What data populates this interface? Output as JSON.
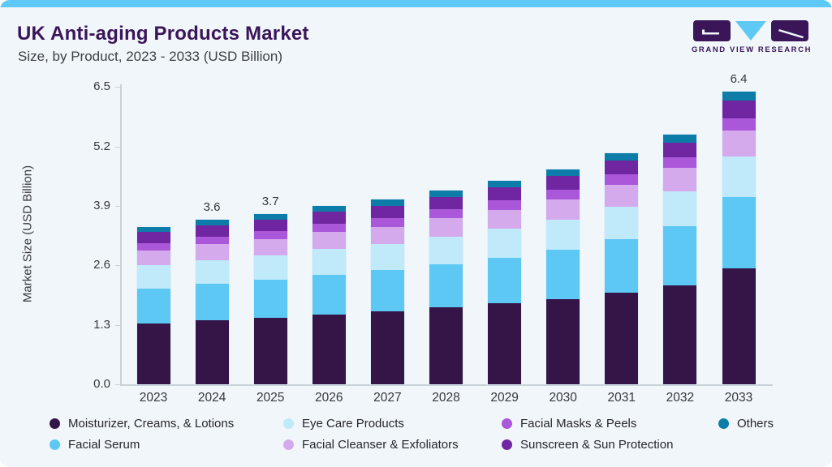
{
  "header": {
    "title": "UK Anti-aging Products Market",
    "subtitle": "Size, by Product, 2023 - 2033 (USD Billion)"
  },
  "logo": {
    "text": "GRAND VIEW RESEARCH"
  },
  "colors": {
    "top_strip": "#5ec9f5",
    "title_text": "#3a1659",
    "background": "#f1f6fa",
    "axis": "#c9d2d9",
    "logo_dark": "#3a1659",
    "logo_blue": "#5ec9f5"
  },
  "chart_data": {
    "type": "bar",
    "stacked": true,
    "title": "UK Anti-aging Products Market",
    "subtitle": "Size, by Product, 2023 - 2033 (USD Billion)",
    "xlabel": "",
    "ylabel": "Market Size (USD Billion)",
    "ylim": [
      0,
      6.5
    ],
    "y_ticks": [
      "0.0",
      "1.3",
      "2.6",
      "3.9",
      "5.2",
      "6.5"
    ],
    "grid": false,
    "legend_position": "bottom",
    "categories": [
      "2023",
      "2024",
      "2025",
      "2026",
      "2027",
      "2028",
      "2029",
      "2030",
      "2031",
      "2032",
      "2033"
    ],
    "series": [
      {
        "name": "Moisturizer, Creams, & Lotions",
        "color": "#351548",
        "values": [
          1.33,
          1.4,
          1.45,
          1.52,
          1.6,
          1.68,
          1.77,
          1.86,
          2.0,
          2.16,
          2.53
        ]
      },
      {
        "name": "Facial Serum",
        "color": "#5ec8f5",
        "values": [
          0.77,
          0.8,
          0.83,
          0.88,
          0.9,
          0.95,
          1.0,
          1.08,
          1.18,
          1.3,
          1.57
        ]
      },
      {
        "name": "Eye Care Products",
        "color": "#c0e9fa",
        "values": [
          0.5,
          0.52,
          0.54,
          0.56,
          0.57,
          0.6,
          0.63,
          0.66,
          0.71,
          0.77,
          0.88
        ]
      },
      {
        "name": "Facial Cleanser & Exfoliators",
        "color": "#d5aaec",
        "values": [
          0.32,
          0.34,
          0.35,
          0.37,
          0.38,
          0.4,
          0.42,
          0.44,
          0.47,
          0.5,
          0.58
        ]
      },
      {
        "name": "Facial Masks & Peels",
        "color": "#ab57d9",
        "values": [
          0.17,
          0.17,
          0.18,
          0.18,
          0.19,
          0.2,
          0.21,
          0.22,
          0.23,
          0.24,
          0.25
        ]
      },
      {
        "name": "Sunscreen & Sun Protection",
        "color": "#7026a0",
        "values": [
          0.24,
          0.25,
          0.25,
          0.26,
          0.27,
          0.27,
          0.28,
          0.29,
          0.3,
          0.32,
          0.39
        ]
      },
      {
        "name": "Others",
        "color": "#0d7ca8",
        "values": [
          0.12,
          0.12,
          0.12,
          0.13,
          0.14,
          0.14,
          0.15,
          0.15,
          0.16,
          0.17,
          0.2
        ]
      }
    ],
    "bar_total_labels": [
      "",
      "3.6",
      "3.7",
      "",
      "",
      "",
      "",
      "",
      "",
      "",
      "6.4"
    ]
  }
}
